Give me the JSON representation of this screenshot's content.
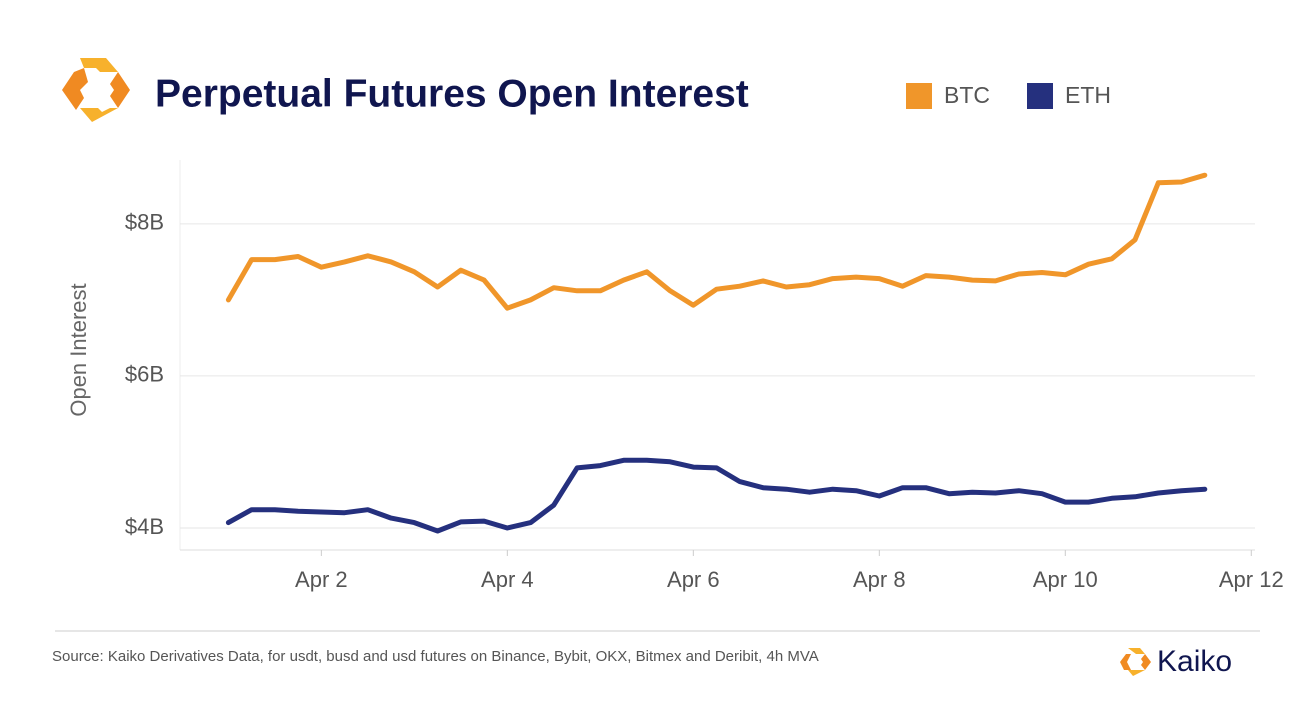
{
  "chart_data": {
    "type": "line",
    "title": "Perpetual Futures Open Interest",
    "y_label": "Open Interest",
    "x": [
      1.0,
      1.25,
      1.5,
      1.75,
      2.0,
      2.25,
      2.5,
      2.75,
      3.0,
      3.25,
      3.5,
      3.75,
      4.0,
      4.25,
      4.5,
      4.75,
      5.0,
      5.25,
      5.5,
      5.75,
      6.0,
      6.25,
      6.5,
      6.75,
      7.0,
      7.25,
      7.5,
      7.75,
      8.0,
      8.25,
      8.5,
      8.75,
      9.0,
      9.25,
      9.5,
      9.75,
      10.0,
      10.25,
      10.5,
      10.75,
      11.0,
      11.25,
      11.5
    ],
    "series": [
      {
        "name": "BTC",
        "color": "#f0962a",
        "values": [
          7.0,
          7.53,
          7.53,
          7.57,
          7.43,
          7.5,
          7.58,
          7.5,
          7.37,
          7.17,
          7.39,
          7.26,
          6.89,
          7.0,
          7.16,
          7.12,
          7.12,
          7.26,
          7.37,
          7.12,
          6.93,
          7.14,
          7.18,
          7.25,
          7.17,
          7.2,
          7.28,
          7.3,
          7.28,
          7.18,
          7.32,
          7.3,
          7.26,
          7.25,
          7.34,
          7.36,
          7.33,
          7.47,
          7.54,
          7.79,
          8.54,
          8.55,
          8.64
        ]
      },
      {
        "name": "ETH",
        "color": "#25307e",
        "values": [
          4.07,
          4.24,
          4.24,
          4.22,
          4.21,
          4.2,
          4.24,
          4.13,
          4.07,
          3.96,
          4.08,
          4.09,
          4.0,
          4.07,
          4.3,
          4.79,
          4.82,
          4.89,
          4.89,
          4.87,
          4.8,
          4.79,
          4.61,
          4.53,
          4.51,
          4.47,
          4.51,
          4.49,
          4.42,
          4.53,
          4.53,
          4.45,
          4.47,
          4.46,
          4.49,
          4.45,
          4.34,
          4.34,
          4.39,
          4.41,
          4.46,
          4.49,
          4.51
        ]
      }
    ],
    "xlim": [
      0.48,
      12.04
    ],
    "xticks": [
      {
        "value": 2,
        "label": "Apr 2"
      },
      {
        "value": 4,
        "label": "Apr 4"
      },
      {
        "value": 6,
        "label": "Apr 6"
      },
      {
        "value": 8,
        "label": "Apr 8"
      },
      {
        "value": 10,
        "label": "Apr 10"
      },
      {
        "value": 12,
        "label": "Apr 12"
      }
    ],
    "ylim": [
      3.71,
      8.84
    ],
    "yticks": [
      {
        "value": 4,
        "label": "$4B"
      },
      {
        "value": 6,
        "label": "$6B"
      },
      {
        "value": 8,
        "label": "$8B"
      }
    ],
    "grid": true
  },
  "footer": {
    "source": "Source: Kaiko Derivatives Data, for usdt, busd and usd futures on Binance, Bybit, OKX, Bitmex and Deribit, 4h MVA",
    "brand": "Kaiko"
  }
}
